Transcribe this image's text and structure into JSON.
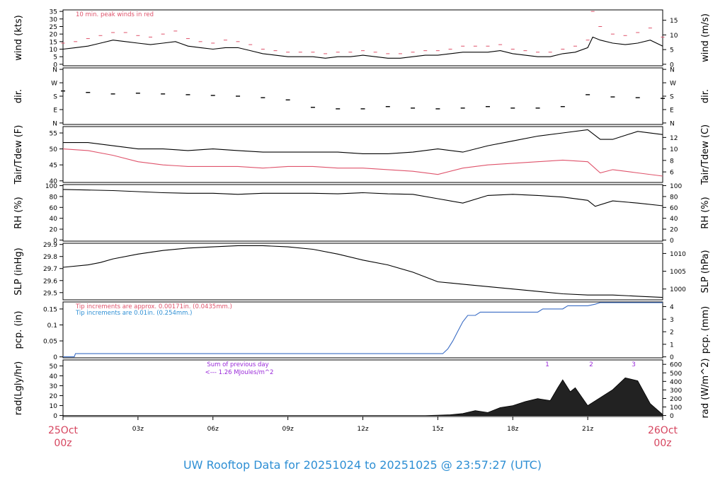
{
  "chart_data": [
    {
      "type": "line",
      "ylabel": "wind (kts)",
      "ylabel_right": "wind (m/s)",
      "yticks": [
        0,
        5,
        10,
        15,
        20,
        25,
        30,
        35
      ],
      "yticks_right": [
        0,
        5,
        10,
        15
      ],
      "ylim": [
        -1,
        36
      ],
      "annotation": "10 min. peak winds in red",
      "series": [
        {
          "color": "#000000",
          "x": [
            0,
            0.5,
            1,
            1.5,
            2,
            2.5,
            3,
            3.5,
            4,
            4.5,
            5,
            5.5,
            6,
            6.5,
            7,
            7.5,
            8,
            8.5,
            9,
            9.5,
            10,
            10.5,
            11,
            11.5,
            12,
            12.5,
            13,
            13.5,
            14,
            14.5,
            15,
            15.5,
            16,
            16.5,
            17,
            17.5,
            18,
            18.5,
            19,
            19.5,
            20,
            20.5,
            21,
            21.2,
            21.5,
            22,
            22.5,
            23,
            23.5,
            24
          ],
          "values": [
            10,
            11,
            12,
            14,
            16,
            15,
            14,
            13,
            14,
            15,
            12,
            11,
            10,
            11,
            11,
            9,
            7,
            6,
            5,
            5,
            5,
            4,
            5,
            5,
            6,
            5,
            4,
            4,
            5,
            6,
            6,
            7,
            8,
            8,
            8,
            9,
            7,
            6,
            5,
            5,
            7,
            8,
            11,
            18,
            16,
            14,
            13,
            14,
            16,
            12
          ]
        },
        {
          "name": "10 min. peak winds",
          "color": "#df536b",
          "x": [
            0,
            0.5,
            1,
            1.5,
            2,
            2.5,
            3,
            3.5,
            4,
            4.5,
            5,
            5.5,
            6,
            6.5,
            7,
            7.5,
            8,
            8.5,
            9,
            9.5,
            10,
            10.5,
            11,
            11.5,
            12,
            12.5,
            13,
            13.5,
            14,
            14.5,
            15,
            15.5,
            16,
            16.5,
            17,
            17.5,
            18,
            18.5,
            19,
            19.5,
            20,
            20.5,
            21,
            21.2,
            21.5,
            22,
            22.5,
            23,
            23.5,
            24
          ],
          "values": [
            14,
            15,
            17,
            19,
            21,
            21,
            19,
            18,
            20,
            22,
            17,
            15,
            14,
            16,
            15,
            13,
            10,
            9,
            8,
            8,
            8,
            7,
            8,
            8,
            9,
            8,
            7,
            7,
            8,
            9,
            9,
            10,
            12,
            12,
            12,
            13,
            10,
            9,
            8,
            8,
            10,
            12,
            16,
            35,
            25,
            20,
            19,
            21,
            24,
            18
          ]
        }
      ]
    },
    {
      "type": "scatter",
      "ylabel": "dir.",
      "ylabel_right": "dir.",
      "yticks": [
        "N",
        "E",
        "S",
        "W",
        "N"
      ],
      "yticks_right": [
        "N",
        "E",
        "S",
        "W",
        "N"
      ],
      "ylim": [
        -10,
        370
      ],
      "series": [
        {
          "color": "#000000",
          "x": [
            0,
            1,
            2,
            3,
            4,
            5,
            6,
            7,
            8,
            9,
            10,
            11,
            12,
            13,
            14,
            15,
            16,
            17,
            18,
            19,
            20,
            21,
            22,
            23,
            24
          ],
          "values": [
            215,
            205,
            195,
            200,
            195,
            190,
            185,
            180,
            170,
            155,
            105,
            95,
            95,
            110,
            100,
            95,
            100,
            110,
            100,
            100,
            110,
            190,
            175,
            170,
            165
          ]
        }
      ]
    },
    {
      "type": "line",
      "ylabel": "Tair/Tdew (F)",
      "ylabel_right": "Tair/Tdew (C)",
      "yticks": [
        40,
        45,
        50,
        55
      ],
      "yticks_right": [
        6,
        8,
        10,
        12
      ],
      "ylim": [
        39.5,
        57
      ],
      "series": [
        {
          "name": "Tair",
          "color": "#000000",
          "x": [
            0,
            1,
            2,
            3,
            4,
            5,
            6,
            7,
            8,
            9,
            10,
            11,
            12,
            13,
            14,
            15,
            16,
            17,
            18,
            19,
            20,
            21,
            21.5,
            22,
            23,
            24
          ],
          "values": [
            52,
            52,
            51,
            50,
            50,
            49.5,
            50,
            49.5,
            49,
            49,
            49,
            49,
            48.5,
            48.5,
            49,
            50,
            49,
            51,
            52.5,
            54,
            55,
            56,
            53,
            53,
            55.5,
            54.5
          ]
        },
        {
          "name": "Tdew",
          "color": "#df536b",
          "x": [
            0,
            1,
            2,
            3,
            4,
            5,
            6,
            7,
            8,
            9,
            10,
            11,
            12,
            13,
            14,
            15,
            16,
            17,
            18,
            19,
            20,
            21,
            21.5,
            22,
            23,
            24
          ],
          "values": [
            50,
            49.5,
            48,
            46,
            45,
            44.5,
            44.5,
            44.5,
            44,
            44.5,
            44.5,
            44,
            44,
            43.5,
            43,
            42,
            44,
            45,
            45.5,
            46,
            46.5,
            46,
            42.5,
            43.5,
            42.5,
            41.5
          ]
        }
      ]
    },
    {
      "type": "line",
      "ylabel": "RH (%)",
      "ylabel_right": "RH (%)",
      "yticks": [
        0,
        20,
        40,
        60,
        80,
        100
      ],
      "yticks_right": [
        0,
        20,
        40,
        60,
        80,
        100
      ],
      "ylim": [
        -2,
        102
      ],
      "series": [
        {
          "color": "#000000",
          "x": [
            0,
            1,
            2,
            3,
            4,
            5,
            6,
            7,
            8,
            9,
            10,
            11,
            12,
            13,
            14,
            15,
            16,
            17,
            18,
            19,
            20,
            21,
            21.3,
            22,
            23,
            24
          ],
          "values": [
            93,
            92,
            91,
            89,
            87,
            86,
            86,
            84,
            86,
            86,
            86,
            85,
            87,
            85,
            84,
            76,
            68,
            82,
            84,
            82,
            79,
            73,
            62,
            72,
            68,
            63
          ]
        }
      ]
    },
    {
      "type": "line",
      "ylabel": "SLP (inHg)",
      "ylabel_right": "SLP (hPa)",
      "yticks": [
        29.5,
        29.6,
        29.7,
        29.8,
        29.9
      ],
      "yticks_right": [
        1000,
        1005,
        1010
      ],
      "ylim": [
        29.44,
        29.91
      ],
      "series": [
        {
          "color": "#000000",
          "x": [
            0,
            1,
            1.5,
            2,
            3,
            4,
            5,
            6,
            7,
            8,
            9,
            10,
            11,
            12,
            13,
            14,
            15,
            16,
            17,
            18,
            19,
            20,
            21,
            22,
            23,
            24
          ],
          "values": [
            29.71,
            29.73,
            29.75,
            29.78,
            29.82,
            29.85,
            29.87,
            29.88,
            29.89,
            29.89,
            29.88,
            29.86,
            29.82,
            29.77,
            29.73,
            29.67,
            29.59,
            29.57,
            29.55,
            29.53,
            29.51,
            29.49,
            29.48,
            29.48,
            29.47,
            29.46
          ]
        }
      ]
    },
    {
      "type": "line",
      "ylabel": "pcp. (in)",
      "ylabel_right": "pcp. (mm)",
      "yticks": [
        0.0,
        0.05,
        0.1,
        0.15
      ],
      "yticks_right": [
        0,
        1,
        2,
        3,
        4
      ],
      "ylim": [
        -0.003,
        0.172
      ],
      "annotation_1": "Tip increments are approx. 0.00171in. (0.0435mm.)",
      "annotation_2": "Tip increments are 0.01in. (0.254mm.)",
      "series": [
        {
          "color": "#3a6cc4",
          "x": [
            0,
            0.45,
            0.5,
            15.2,
            15.4,
            15.6,
            15.8,
            16,
            16.2,
            16.5,
            16.7,
            16.9,
            17,
            19,
            19.2,
            20,
            20.2,
            21,
            21.3,
            21.5,
            24
          ],
          "values": [
            0,
            0,
            0.01,
            0.01,
            0.025,
            0.05,
            0.08,
            0.11,
            0.13,
            0.13,
            0.14,
            0.14,
            0.14,
            0.14,
            0.15,
            0.15,
            0.16,
            0.16,
            0.165,
            0.17,
            0.17
          ]
        }
      ]
    },
    {
      "type": "area",
      "ylabel": "rad(Lgly/hr)",
      "ylabel_right": "rad (W/m^2)",
      "yticks": [
        0,
        10,
        20,
        30,
        40,
        50
      ],
      "yticks_right": [
        0,
        100,
        200,
        300,
        400,
        500,
        600
      ],
      "ylim": [
        -1,
        56
      ],
      "annotation_title": "Sum of previous day",
      "annotation_value": "<--- 1.26 MJoules/m^2",
      "markers": [
        "1",
        "2",
        "3"
      ],
      "series": [
        {
          "color": "#000000",
          "x": [
            0,
            14.5,
            15,
            15.5,
            16,
            16.5,
            17,
            17.5,
            18,
            18.5,
            19,
            19.5,
            19.8,
            20,
            20.3,
            20.5,
            21,
            21.5,
            22,
            22.5,
            23,
            23.5,
            24
          ],
          "values": [
            0,
            0,
            0.3,
            0.8,
            2,
            5,
            3,
            8,
            10,
            14,
            17,
            15,
            28,
            36,
            24,
            28,
            10,
            18,
            26,
            38,
            35,
            12,
            1
          ]
        }
      ]
    }
  ],
  "x_axis": {
    "ticks": [
      "03z",
      "06z",
      "09z",
      "12z",
      "15z",
      "18z",
      "21z"
    ],
    "start_date": "25Oct",
    "start_time": "00z",
    "end_date": "26Oct",
    "end_time": "00z"
  },
  "footer": "UW Rooftop Data for 20251024  to  20251025 @ 23:57:27  (UTC)"
}
